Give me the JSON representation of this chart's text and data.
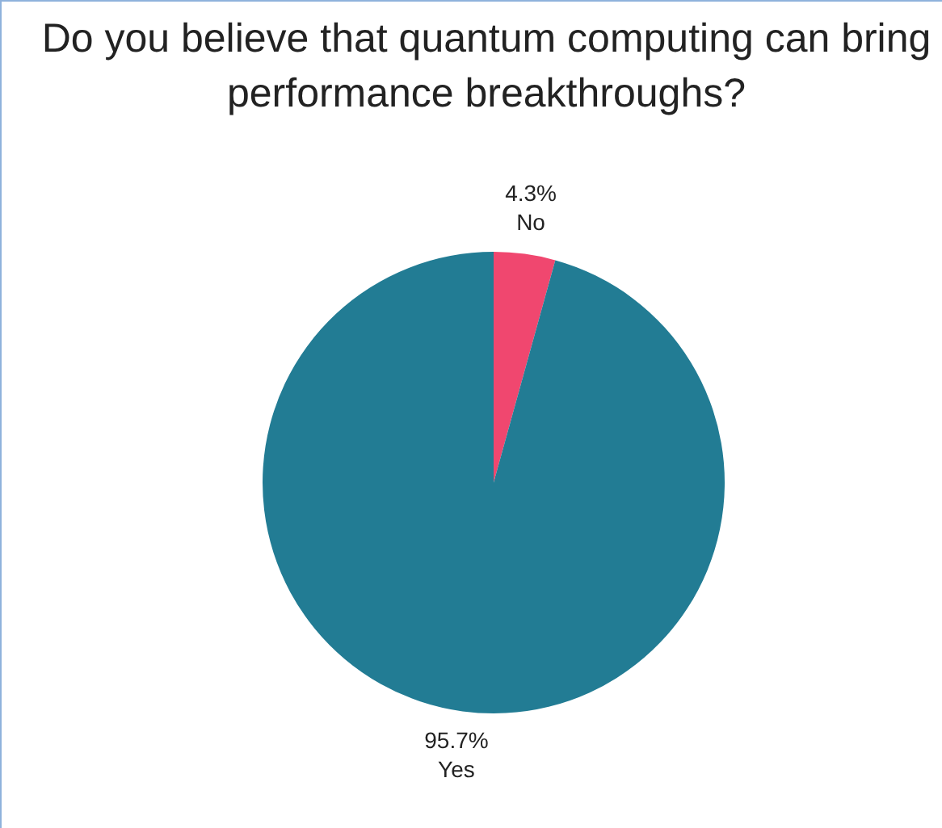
{
  "chart_data": {
    "type": "pie",
    "title": "Do you believe that quantum computing can bring performance breakthroughs?",
    "categories": [
      "No",
      "Yes"
    ],
    "values": [
      4.3,
      95.7
    ],
    "colors": [
      "#f0476f",
      "#227c94"
    ],
    "value_labels": [
      "4.3%",
      "95.7%"
    ],
    "legend": false
  }
}
